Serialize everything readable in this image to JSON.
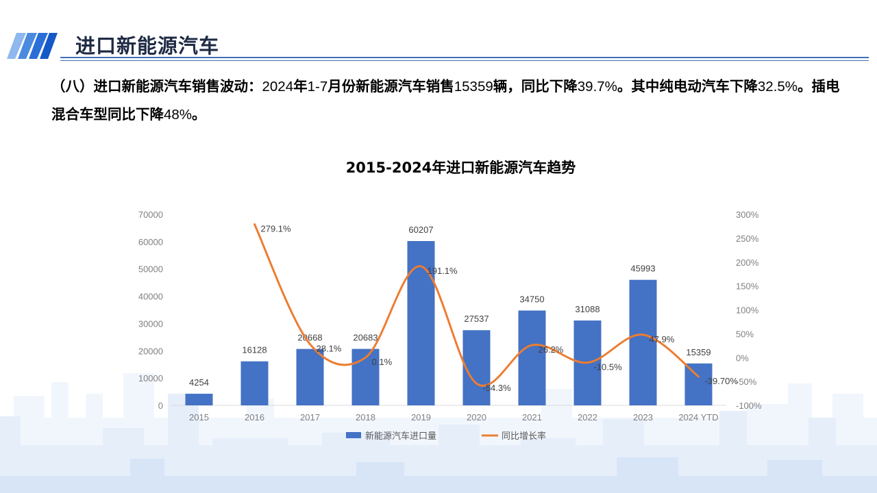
{
  "page": {
    "title": "进口新能源汽车",
    "summary_parts": [
      {
        "text": "（八）进口新能源汽车销售波动：",
        "num": false
      },
      {
        "text": "2024",
        "num": true
      },
      {
        "text": "年",
        "num": false
      },
      {
        "text": "1-7",
        "num": true
      },
      {
        "text": "月份新能源汽车销售",
        "num": false
      },
      {
        "text": "15359",
        "num": true
      },
      {
        "text": "辆，同比下降",
        "num": false
      },
      {
        "text": "39.7%",
        "num": true
      },
      {
        "text": "。其中纯电动汽车下降",
        "num": false
      },
      {
        "text": "32.5%",
        "num": true
      },
      {
        "text": "。插电混合车型同比下降",
        "num": false
      },
      {
        "text": "48%",
        "num": true
      },
      {
        "text": "。",
        "num": false
      }
    ]
  },
  "chart_data": {
    "type": "bar",
    "title": "2015-2024年进口新能源汽车趋势",
    "categories": [
      "2015",
      "2016",
      "2017",
      "2018",
      "2019",
      "2020",
      "2021",
      "2022",
      "2023",
      "2024 YTD"
    ],
    "series": [
      {
        "name": "新能源汽车进口量",
        "type": "bar",
        "axis": "left",
        "color": "#4472c4",
        "values": [
          4254,
          16128,
          20668,
          20683,
          60207,
          27537,
          34750,
          31088,
          45993,
          15359
        ],
        "labels": [
          "4254",
          "16128",
          "20668",
          "20683",
          "60207",
          "27537",
          "34750",
          "31088",
          "45993",
          "15359"
        ]
      },
      {
        "name": "同比增长率",
        "type": "line",
        "axis": "right",
        "smooth": true,
        "color": "#ed7d31",
        "values": [
          null,
          279.1,
          28.1,
          0.1,
          191.1,
          -54.3,
          26.2,
          -10.5,
          47.9,
          -39.7
        ],
        "labels": [
          "",
          "279.1%",
          "28.1%",
          "0.1%",
          "191.1%",
          "-54.3%",
          "26.2%",
          "-10.5%",
          "47.9%",
          "-39.70%"
        ]
      }
    ],
    "y_left": {
      "min": 0,
      "max": 70000,
      "step": 10000,
      "ticks": [
        "0",
        "10000",
        "20000",
        "30000",
        "40000",
        "50000",
        "60000",
        "70000"
      ]
    },
    "y_right": {
      "min": -100,
      "max": 300,
      "step": 50,
      "ticks": [
        "-100%",
        "-50%",
        "0%",
        "50%",
        "100%",
        "150%",
        "200%",
        "250%",
        "300%"
      ]
    },
    "grid": false,
    "legend_position": "bottom"
  },
  "colors": {
    "accent": "#3c6fb8",
    "bar": "#4472c4",
    "line": "#ed7d31",
    "skyline_light": "#eef4fc",
    "skyline_mid": "#dce8f8"
  }
}
